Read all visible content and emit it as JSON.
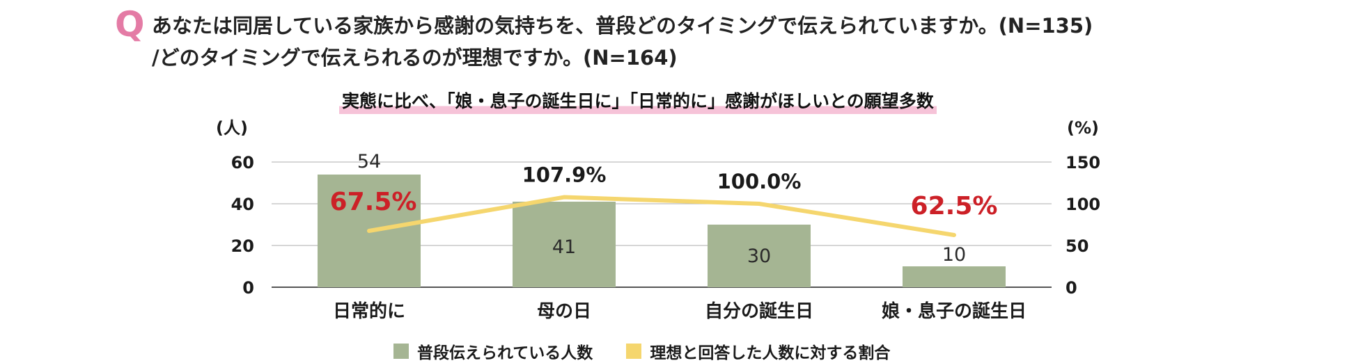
{
  "question": {
    "marker": "Q",
    "line1": "あなたは同居している家族から感謝の気持ちを、普段どのタイミングで伝えられていますか。(N=135)",
    "line2": "/どのタイミングで伝えられるのが理想ですか。(N=164)"
  },
  "chart_data": {
    "type": "bar",
    "title": "実態に比べ、「娘・息子の誕生日に」「日常的に」感謝がほしいとの願望多数",
    "categories": [
      "日常的に",
      "母の日",
      "自分の誕生日",
      "娘・息子の誕生日"
    ],
    "series": [
      {
        "name": "普段伝えられている人数",
        "type": "bar",
        "axis": "left",
        "color": "#a5b593",
        "values": [
          54,
          41,
          30,
          10
        ],
        "labels": [
          "54",
          "41",
          "30",
          "10"
        ]
      },
      {
        "name": "理想と回答した人数に対する割合",
        "type": "line",
        "axis": "right",
        "color": "#f5d66e",
        "values": [
          67.5,
          107.9,
          100.0,
          62.5
        ],
        "labels": [
          "67.5%",
          "107.9%",
          "100.0%",
          "62.5%"
        ],
        "label_colors": [
          "#cc2027",
          "#1a1a1a",
          "#1a1a1a",
          "#cc2027"
        ]
      }
    ],
    "y_left": {
      "unit_label": "(人)",
      "range": [
        0,
        60
      ],
      "ticks": [
        "0",
        "20",
        "40",
        "60"
      ]
    },
    "y_right": {
      "unit_label": "(%)",
      "range": [
        0,
        150
      ],
      "ticks": [
        "0",
        "50",
        "100",
        "150"
      ]
    },
    "grid": true,
    "legend": "bottom-center"
  }
}
